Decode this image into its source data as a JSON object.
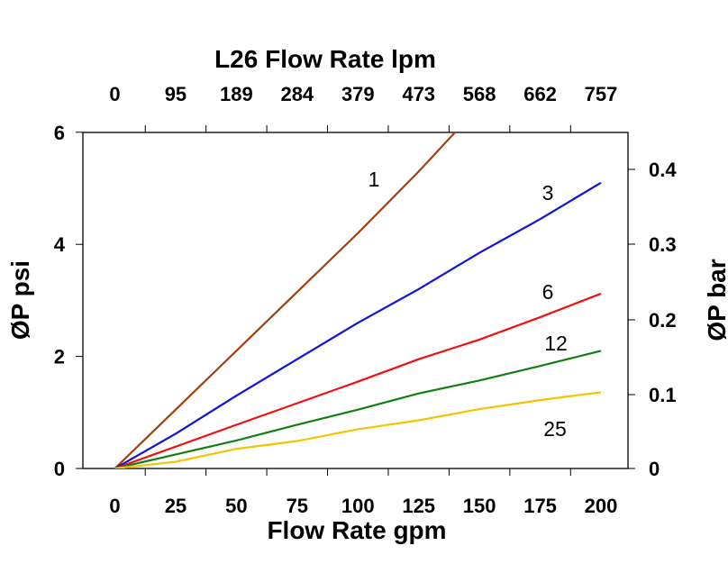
{
  "chart_data": {
    "type": "line",
    "title": "L26 Flow Rate lpm",
    "xlabel": "Flow Rate gpm",
    "ylabel": "ØP psi",
    "ylabel_right": "ØP bar",
    "xlim": [
      -13,
      213
    ],
    "ylim": [
      0,
      6
    ],
    "x_ticks": [
      0,
      25,
      50,
      75,
      100,
      125,
      150,
      175,
      200
    ],
    "x_top_tick_labels": [
      "0",
      "95",
      "189",
      "284",
      "379",
      "473",
      "568",
      "662",
      "757"
    ],
    "y_ticks": [
      0,
      2,
      4,
      6
    ],
    "y_right_ticks": [
      "0",
      "0.1",
      "0.2",
      "0.3",
      "0.4"
    ],
    "grid": false,
    "series": [
      {
        "name": "1",
        "color": "#a0410d",
        "x": [
          0,
          25,
          50,
          75,
          100,
          125,
          140
        ],
        "y": [
          0,
          1.05,
          2.1,
          3.15,
          4.2,
          5.3,
          6
        ]
      },
      {
        "name": "3",
        "color": "#1010e0",
        "x": [
          0,
          25,
          50,
          75,
          100,
          125,
          150,
          175,
          200
        ],
        "y": [
          0,
          0.62,
          1.3,
          1.95,
          2.6,
          3.2,
          3.85,
          4.45,
          5.1
        ]
      },
      {
        "name": "6",
        "color": "#f01010",
        "x": [
          0,
          50,
          100,
          125,
          150,
          175,
          200
        ],
        "y": [
          0,
          0.78,
          1.55,
          1.95,
          2.3,
          2.7,
          3.12
        ]
      },
      {
        "name": "12",
        "color": "#108010",
        "x": [
          0,
          25,
          50,
          75,
          100,
          125,
          150,
          175,
          200
        ],
        "y": [
          0,
          0.25,
          0.5,
          0.78,
          1.05,
          1.34,
          1.57,
          1.83,
          2.1
        ]
      },
      {
        "name": "25",
        "color": "#f5c400",
        "x": [
          0,
          25,
          50,
          75,
          100,
          125,
          150,
          175,
          200
        ],
        "y": [
          0,
          0.12,
          0.35,
          0.49,
          0.7,
          0.86,
          1.06,
          1.22,
          1.36
        ]
      }
    ]
  }
}
